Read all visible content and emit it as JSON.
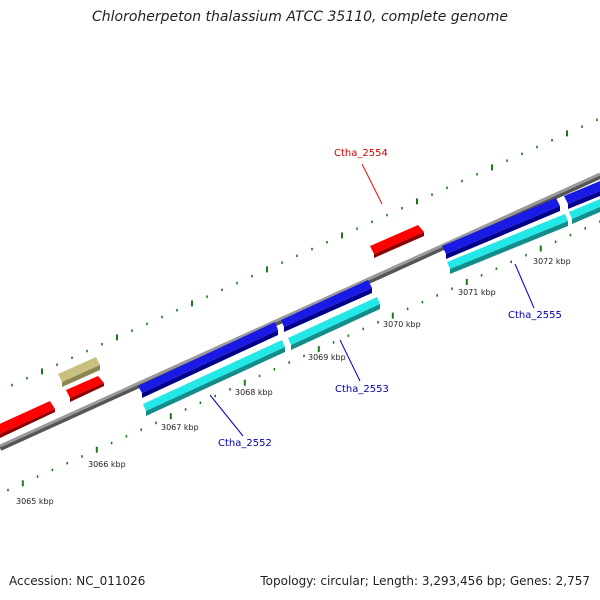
{
  "title": "Chloroherpeton thalassium ATCC 35110, complete genome",
  "accession": "Accession: NC_011026",
  "summary": "Topology: circular; Length: 3,293,456 bp; Genes: 2,757",
  "kbp_labels": [
    "3065 kbp",
    "3066 kbp",
    "3067 kbp",
    "3068 kbp",
    "3069 kbp",
    "3070 kbp",
    "3071 kbp",
    "3072 kbp"
  ],
  "gene_labels": [
    {
      "text": "Ctha_2554",
      "color": "#cc0000"
    },
    {
      "text": "Ctha_2552",
      "color": "#0000aa"
    },
    {
      "text": "Ctha_2553",
      "color": "#0000aa"
    },
    {
      "text": "Ctha_2555",
      "color": "#0000aa"
    }
  ],
  "colors": {
    "backbone": "#8c8c8c",
    "forward_gene": "#ff0000",
    "reverse_gene": "#1a1ae6",
    "reverse_cds": "#22e8e8",
    "pseudo_gene": "#bdb76b",
    "ticks": "#1a7a1a"
  }
}
